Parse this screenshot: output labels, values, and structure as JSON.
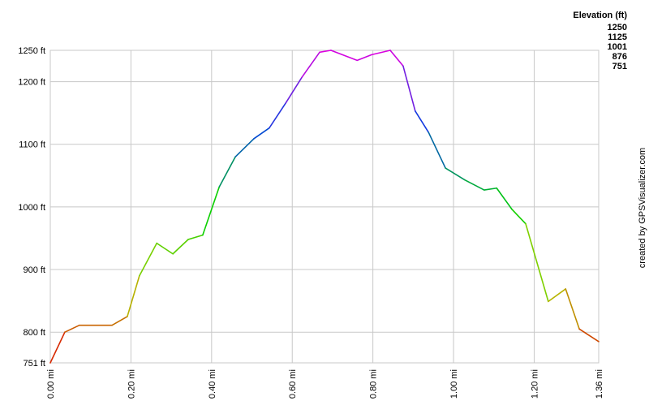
{
  "chart_data": {
    "type": "line",
    "x": [
      0,
      0.036,
      0.072,
      0.153,
      0.191,
      0.221,
      0.264,
      0.304,
      0.342,
      0.378,
      0.419,
      0.459,
      0.505,
      0.543,
      0.584,
      0.624,
      0.668,
      0.696,
      0.761,
      0.797,
      0.843,
      0.875,
      0.905,
      0.938,
      0.98,
      1.028,
      1.076,
      1.107,
      1.145,
      1.179,
      1.235,
      1.278,
      1.312,
      1.36
    ],
    "values": [
      751,
      800,
      811,
      811,
      825,
      890,
      942,
      925,
      948,
      955,
      1032,
      1080,
      1109,
      1126,
      1166,
      1207,
      1247,
      1250,
      1234,
      1243,
      1250,
      1225,
      1153,
      1119,
      1062,
      1043,
      1027,
      1030,
      996,
      973,
      849,
      869,
      805,
      785
    ],
    "xlim": [
      0,
      1.36
    ],
    "ylim": [
      751,
      1250
    ],
    "xticks": [
      {
        "value": 0,
        "label": "0.00 mi"
      },
      {
        "value": 0.2,
        "label": "0.20 mi"
      },
      {
        "value": 0.4,
        "label": "0.40 mi"
      },
      {
        "value": 0.6,
        "label": "0.60 mi"
      },
      {
        "value": 0.8,
        "label": "0.80 mi"
      },
      {
        "value": 1.0,
        "label": "1.00 mi"
      },
      {
        "value": 1.2,
        "label": "1.20 mi"
      },
      {
        "value": 1.36,
        "label": "1.36 mi"
      }
    ],
    "yticks": [
      {
        "value": 751,
        "label": "751 ft"
      },
      {
        "value": 800,
        "label": "800 ft"
      },
      {
        "value": 900,
        "label": "900 ft"
      },
      {
        "value": 1000,
        "label": "1000 ft"
      },
      {
        "value": 1100,
        "label": "1100 ft"
      },
      {
        "value": 1200,
        "label": "1200 ft"
      },
      {
        "value": 1250,
        "label": "1250 ft"
      }
    ],
    "grid": true,
    "legend_title": "Elevation (ft)",
    "color_scale": [
      {
        "value": 1250,
        "color": "#e000e0"
      },
      {
        "value": 1125,
        "color": "#0040e0"
      },
      {
        "value": 1001,
        "color": "#00d000"
      },
      {
        "value": 876,
        "color": "#b0d000"
      },
      {
        "value": 751,
        "color": "#e00000"
      }
    ],
    "credit": "created by GPSVisualizer.com"
  }
}
